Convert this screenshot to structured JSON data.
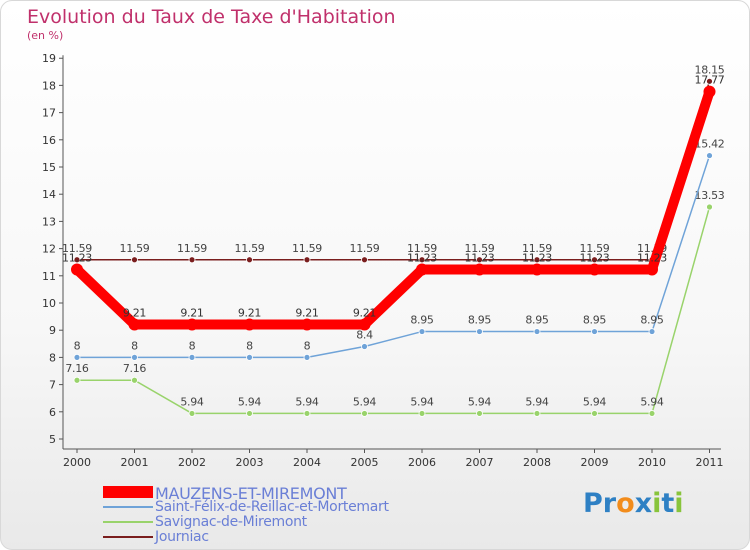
{
  "title": "Evolution du Taux de Taxe d'Habitation",
  "subtitle": "(en %)",
  "logo": {
    "text": "Proxiti",
    "letters": [
      "P",
      "r",
      "o",
      "x",
      "i",
      "t",
      "i"
    ],
    "colors": [
      "#2e80c4",
      "#2e80c4",
      "#f28c1c",
      "#2e80c4",
      "#88c43b",
      "#2e80c4",
      "#88c43b"
    ]
  },
  "chart_data": {
    "type": "line",
    "title": "Evolution du Taux de Taxe d'Habitation",
    "ylabel": "(en %)",
    "x": [
      "2000",
      "2001",
      "2002",
      "2003",
      "2004",
      "2005",
      "2006",
      "2007",
      "2008",
      "2009",
      "2010",
      "2011"
    ],
    "yticks": [
      "5",
      "6",
      "7",
      "8",
      "9",
      "10",
      "11",
      "12",
      "13",
      "14",
      "15",
      "16",
      "17",
      "18",
      "19"
    ],
    "ylim": [
      5,
      19
    ],
    "grid": false,
    "legend": "bottom",
    "series": [
      {
        "name": "Journiac",
        "color": "#7a1e1e",
        "values": [
          11.59,
          11.59,
          11.59,
          11.59,
          11.59,
          11.59,
          11.59,
          11.59,
          11.59,
          11.59,
          11.59,
          18.15
        ],
        "labels": [
          "11.59",
          "11.59",
          "11.59",
          "11.59",
          "11.59",
          "11.59",
          "11.59",
          "11.59",
          "11.59",
          "11.59",
          "11.59",
          "18.15"
        ]
      },
      {
        "name": "Savignac-de-Miremont",
        "color": "#99d36b",
        "values": [
          7.16,
          7.16,
          5.94,
          5.94,
          5.94,
          5.94,
          5.94,
          5.94,
          5.94,
          5.94,
          5.94,
          13.53
        ],
        "labels": [
          "7.16",
          "7.16",
          "5.94",
          "5.94",
          "5.94",
          "5.94",
          "5.94",
          "5.94",
          "5.94",
          "5.94",
          "5.94",
          "13.53"
        ]
      },
      {
        "name": "Saint-Félix-de-Reillac-et-Mortemart",
        "color": "#6fa3d8",
        "values": [
          8,
          8,
          8,
          8,
          8,
          8.4,
          8.95,
          8.95,
          8.95,
          8.95,
          8.95,
          15.42
        ],
        "labels": [
          "8",
          "8",
          "8",
          "8",
          "8",
          "8.4",
          "8.95",
          "8.95",
          "8.95",
          "8.95",
          "8.95",
          "15.42"
        ]
      },
      {
        "name": "MAUZENS-ET-MIREMONT",
        "color": "#ff0000",
        "values": [
          11.23,
          9.21,
          9.21,
          9.21,
          9.21,
          9.21,
          11.23,
          11.23,
          11.23,
          11.23,
          11.23,
          17.77
        ],
        "labels": [
          "11.23",
          "9.21",
          "9.21",
          "9.21",
          "9.21",
          "9.21",
          "11.23",
          "11.23",
          "11.23",
          "11.23",
          "11.23",
          "17.77"
        ]
      }
    ]
  },
  "legend": [
    {
      "label": "MAUZENS-ET-MIREMONT",
      "color": "#ff0000",
      "size": 12,
      "font_size": 16
    },
    {
      "label": "Saint-Félix-de-Reillac-et-Mortemart",
      "color": "#6fa3d8",
      "size": 2,
      "font_size": 14
    },
    {
      "label": "Savignac-de-Miremont",
      "color": "#99d36b",
      "size": 2,
      "font_size": 14
    },
    {
      "label": "Journiac",
      "color": "#7a1e1e",
      "size": 2,
      "font_size": 14
    }
  ]
}
